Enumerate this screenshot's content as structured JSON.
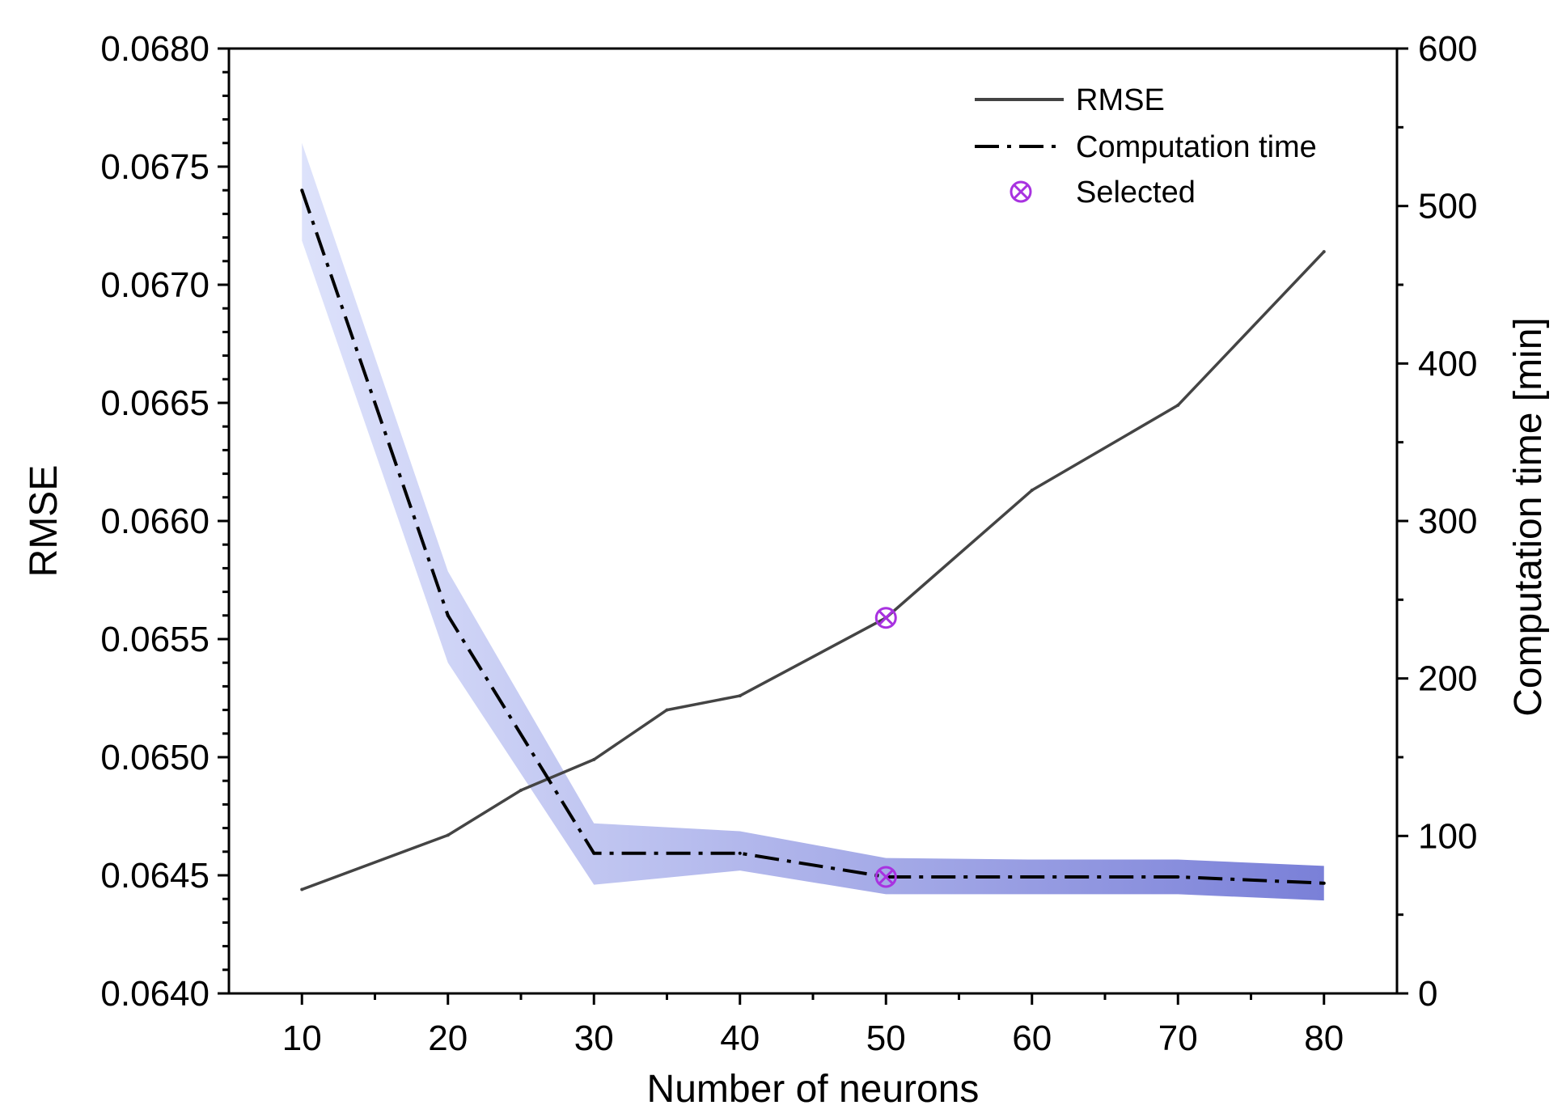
{
  "chart_data": {
    "type": "line",
    "title": "",
    "xlabel": "Number of neurons",
    "ylabel_left": "RMSE",
    "ylabel_right": "Computation time [min]",
    "x_ticks": [
      10,
      20,
      30,
      40,
      50,
      60,
      70,
      80
    ],
    "x_tick_labels": [
      "10",
      "20",
      "30",
      "40",
      "50",
      "60",
      "70",
      "80"
    ],
    "xlim": [
      5,
      85
    ],
    "ylim_left": [
      0.064,
      0.068
    ],
    "ylim_right": [
      0,
      600
    ],
    "y_left_ticks": [
      0.064,
      0.0645,
      0.065,
      0.0655,
      0.066,
      0.0665,
      0.067,
      0.0675,
      0.068
    ],
    "y_left_tick_labels": [
      "0.0640",
      "0.0645",
      "0.0650",
      "0.0655",
      "0.0660",
      "0.0665",
      "0.0670",
      "0.0675",
      "0.0680"
    ],
    "y_right_ticks": [
      0,
      100,
      200,
      300,
      400,
      500,
      600
    ],
    "y_right_tick_labels": [
      "0",
      "100",
      "200",
      "300",
      "400",
      "500",
      "600"
    ],
    "grid": false,
    "legend_position": "top-right",
    "series": [
      {
        "name": "RMSE",
        "axis": "left",
        "style": "solid",
        "color": "#444444",
        "x": [
          10,
          20,
          25,
          30,
          35,
          40,
          50,
          60,
          70,
          80
        ],
        "values": [
          0.06444,
          0.06467,
          0.06486,
          0.06499,
          0.0652,
          0.06526,
          0.06559,
          0.06613,
          0.06649,
          0.06714
        ]
      },
      {
        "name": "Computation time",
        "axis": "right",
        "style": "dash-dot",
        "color": "#000000",
        "x": [
          10,
          20,
          30,
          40,
          50,
          60,
          70,
          80
        ],
        "values": [
          510,
          240,
          89,
          89,
          74,
          74,
          74,
          70
        ],
        "band_upper": [
          540,
          268,
          108,
          103,
          86,
          85,
          85,
          81
        ],
        "band_lower": [
          478,
          210,
          69,
          78,
          63,
          63,
          63,
          59
        ],
        "band_color_start": "#dde2fb",
        "band_color_end": "#7a80d8"
      }
    ],
    "selected": {
      "name": "Selected",
      "x": 50,
      "rmse": 0.06559,
      "time": 74,
      "color": "#a832e0"
    },
    "legend": [
      {
        "label": "RMSE",
        "style": "solid"
      },
      {
        "label": "Computation time",
        "style": "dash-dot"
      },
      {
        "label": "Selected",
        "style": "marker"
      }
    ]
  }
}
